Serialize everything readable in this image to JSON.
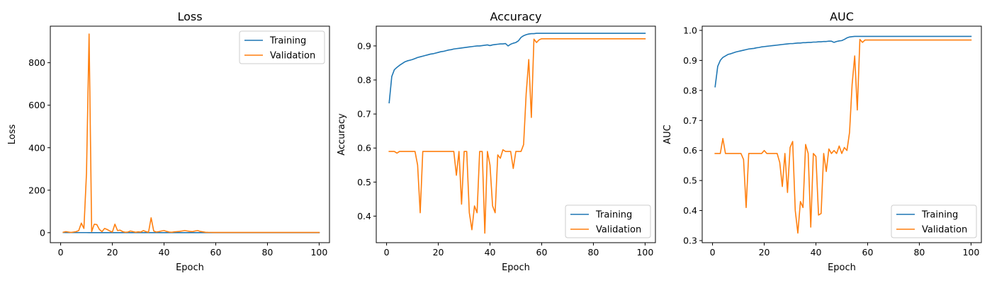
{
  "chart_data": [
    {
      "type": "line",
      "title": "Loss",
      "xlabel": "Epoch",
      "ylabel": "Loss",
      "xlim": [
        -4,
        104
      ],
      "ylim": [
        -47,
        972
      ],
      "xticks": [
        0,
        20,
        40,
        60,
        80,
        100
      ],
      "yticks": [
        0,
        200,
        400,
        600,
        800
      ],
      "legend_position": "upper right",
      "x_start": 1,
      "x_step": 1,
      "series": [
        {
          "name": "Training",
          "color": "#1f77b4",
          "values": [
            1.1,
            0.7,
            0.6,
            0.55,
            0.5,
            0.48,
            0.46,
            0.44,
            0.42,
            0.41,
            0.4,
            0.39,
            0.38,
            0.37,
            0.36,
            0.35,
            0.34,
            0.33,
            0.32,
            0.31,
            0.3,
            0.3,
            0.29,
            0.29,
            0.28,
            0.28,
            0.27,
            0.27,
            0.26,
            0.26,
            0.26,
            0.25,
            0.25,
            0.25,
            0.24,
            0.24,
            0.24,
            0.24,
            0.23,
            0.23,
            0.23,
            0.23,
            0.22,
            0.22,
            0.22,
            0.22,
            0.22,
            0.21,
            0.21,
            0.21,
            0.21,
            0.2,
            0.2,
            0.2,
            0.19,
            0.19,
            0.18,
            0.18,
            0.18,
            0.18,
            0.17,
            0.17,
            0.17,
            0.17,
            0.17,
            0.17,
            0.17,
            0.17,
            0.17,
            0.17,
            0.17,
            0.17,
            0.17,
            0.17,
            0.17,
            0.17,
            0.17,
            0.17,
            0.17,
            0.17,
            0.17,
            0.17,
            0.17,
            0.17,
            0.17,
            0.17,
            0.17,
            0.17,
            0.17,
            0.17,
            0.17,
            0.17,
            0.17,
            0.17,
            0.17,
            0.17,
            0.17,
            0.17,
            0.17,
            0.17
          ]
        },
        {
          "name": "Validation",
          "color": "#ff7f0e",
          "values": [
            2,
            5,
            3,
            1,
            3,
            5,
            10,
            45,
            20,
            280,
            935,
            5,
            40,
            38,
            15,
            5,
            20,
            15,
            8,
            3,
            40,
            10,
            12,
            5,
            2,
            3,
            8,
            5,
            2,
            4,
            3,
            10,
            5,
            2,
            70,
            8,
            3,
            5,
            8,
            10,
            6,
            3,
            2,
            4,
            5,
            6,
            8,
            10,
            8,
            6,
            5,
            8,
            10,
            6,
            4,
            2,
            1.5,
            1.3,
            1.2,
            1.1,
            1,
            1,
            1,
            1,
            1,
            1,
            1,
            1,
            1,
            1,
            1,
            1,
            1,
            1,
            1,
            1,
            1,
            1,
            1,
            1,
            1,
            1,
            1,
            1,
            1,
            1,
            1,
            1,
            1,
            1,
            1,
            1,
            1,
            1,
            1,
            1,
            1,
            1,
            1,
            1
          ]
        }
      ]
    },
    {
      "type": "line",
      "title": "Accuracy",
      "xlabel": "Epoch",
      "ylabel": "Accuracy",
      "xlim": [
        -4,
        104
      ],
      "ylim": [
        0.322,
        0.958
      ],
      "xticks": [
        0,
        20,
        40,
        60,
        80,
        100
      ],
      "yticks": [
        0.4,
        0.5,
        0.6,
        0.7,
        0.8,
        0.9
      ],
      "legend_position": "lower right",
      "x_start": 1,
      "x_step": 1,
      "series": [
        {
          "name": "Training",
          "color": "#1f77b4",
          "values": [
            0.733,
            0.81,
            0.83,
            0.837,
            0.843,
            0.848,
            0.853,
            0.856,
            0.858,
            0.86,
            0.863,
            0.866,
            0.868,
            0.87,
            0.872,
            0.874,
            0.876,
            0.877,
            0.879,
            0.881,
            0.883,
            0.884,
            0.886,
            0.888,
            0.889,
            0.891,
            0.892,
            0.893,
            0.894,
            0.895,
            0.896,
            0.897,
            0.898,
            0.899,
            0.9,
            0.9,
            0.901,
            0.902,
            0.903,
            0.901,
            0.903,
            0.904,
            0.905,
            0.906,
            0.906,
            0.907,
            0.9,
            0.905,
            0.908,
            0.91,
            0.915,
            0.925,
            0.93,
            0.933,
            0.935,
            0.936,
            0.936,
            0.937,
            0.937,
            0.937,
            0.937,
            0.937,
            0.937,
            0.937,
            0.937,
            0.937,
            0.937,
            0.937,
            0.937,
            0.937,
            0.937,
            0.937,
            0.937,
            0.937,
            0.937,
            0.937,
            0.937,
            0.937,
            0.937,
            0.937,
            0.937,
            0.937,
            0.937,
            0.937,
            0.937,
            0.937,
            0.937,
            0.937,
            0.937,
            0.937,
            0.937,
            0.937,
            0.937,
            0.937,
            0.937,
            0.937,
            0.937,
            0.937,
            0.937,
            0.937
          ]
        },
        {
          "name": "Validation",
          "color": "#ff7f0e",
          "values": [
            0.59,
            0.59,
            0.59,
            0.585,
            0.59,
            0.59,
            0.59,
            0.59,
            0.59,
            0.59,
            0.59,
            0.55,
            0.41,
            0.59,
            0.59,
            0.59,
            0.59,
            0.59,
            0.59,
            0.59,
            0.59,
            0.59,
            0.59,
            0.59,
            0.59,
            0.59,
            0.52,
            0.59,
            0.435,
            0.59,
            0.59,
            0.41,
            0.36,
            0.43,
            0.41,
            0.59,
            0.59,
            0.35,
            0.59,
            0.55,
            0.43,
            0.41,
            0.58,
            0.57,
            0.595,
            0.59,
            0.59,
            0.59,
            0.54,
            0.59,
            0.59,
            0.59,
            0.61,
            0.76,
            0.86,
            0.69,
            0.92,
            0.91,
            0.918,
            0.921,
            0.921,
            0.921,
            0.921,
            0.921,
            0.921,
            0.921,
            0.921,
            0.921,
            0.921,
            0.921,
            0.921,
            0.921,
            0.921,
            0.921,
            0.921,
            0.921,
            0.921,
            0.921,
            0.921,
            0.921,
            0.921,
            0.921,
            0.921,
            0.921,
            0.921,
            0.921,
            0.921,
            0.921,
            0.921,
            0.921,
            0.921,
            0.921,
            0.921,
            0.921,
            0.921,
            0.921,
            0.921,
            0.921,
            0.921,
            0.921
          ]
        }
      ]
    },
    {
      "type": "line",
      "title": "AUC",
      "xlabel": "Epoch",
      "ylabel": "AUC",
      "xlim": [
        -4,
        104
      ],
      "ylim": [
        0.293,
        1.014
      ],
      "xticks": [
        0,
        20,
        40,
        60,
        80,
        100
      ],
      "yticks": [
        0.3,
        0.4,
        0.5,
        0.6,
        0.7,
        0.8,
        0.9,
        1.0
      ],
      "legend_position": "lower right",
      "x_start": 1,
      "x_step": 1,
      "series": [
        {
          "name": "Training",
          "color": "#1f77b4",
          "values": [
            0.812,
            0.88,
            0.9,
            0.91,
            0.915,
            0.92,
            0.922,
            0.925,
            0.928,
            0.93,
            0.932,
            0.934,
            0.936,
            0.938,
            0.939,
            0.94,
            0.942,
            0.943,
            0.945,
            0.946,
            0.947,
            0.948,
            0.949,
            0.95,
            0.951,
            0.952,
            0.953,
            0.954,
            0.955,
            0.956,
            0.956,
            0.957,
            0.958,
            0.958,
            0.959,
            0.959,
            0.96,
            0.96,
            0.961,
            0.961,
            0.962,
            0.962,
            0.963,
            0.963,
            0.964,
            0.964,
            0.96,
            0.963,
            0.965,
            0.966,
            0.97,
            0.975,
            0.978,
            0.979,
            0.98,
            0.98,
            0.98,
            0.98,
            0.98,
            0.98,
            0.98,
            0.98,
            0.98,
            0.98,
            0.98,
            0.98,
            0.98,
            0.98,
            0.98,
            0.98,
            0.98,
            0.98,
            0.98,
            0.98,
            0.98,
            0.98,
            0.98,
            0.98,
            0.98,
            0.98,
            0.98,
            0.98,
            0.98,
            0.98,
            0.98,
            0.98,
            0.98,
            0.98,
            0.98,
            0.98,
            0.98,
            0.98,
            0.98,
            0.98,
            0.98,
            0.98,
            0.98,
            0.98,
            0.98,
            0.98
          ]
        },
        {
          "name": "Validation",
          "color": "#ff7f0e",
          "values": [
            0.59,
            0.59,
            0.59,
            0.64,
            0.59,
            0.59,
            0.59,
            0.59,
            0.59,
            0.59,
            0.59,
            0.57,
            0.41,
            0.59,
            0.59,
            0.59,
            0.59,
            0.59,
            0.59,
            0.6,
            0.59,
            0.59,
            0.59,
            0.59,
            0.59,
            0.56,
            0.48,
            0.59,
            0.46,
            0.61,
            0.63,
            0.4,
            0.325,
            0.43,
            0.41,
            0.62,
            0.59,
            0.345,
            0.59,
            0.58,
            0.385,
            0.39,
            0.59,
            0.53,
            0.605,
            0.59,
            0.6,
            0.59,
            0.615,
            0.59,
            0.61,
            0.6,
            0.66,
            0.82,
            0.915,
            0.735,
            0.97,
            0.96,
            0.968,
            0.968,
            0.968,
            0.968,
            0.968,
            0.968,
            0.968,
            0.968,
            0.968,
            0.968,
            0.968,
            0.968,
            0.968,
            0.968,
            0.968,
            0.968,
            0.968,
            0.968,
            0.968,
            0.968,
            0.968,
            0.968,
            0.968,
            0.968,
            0.968,
            0.968,
            0.968,
            0.968,
            0.968,
            0.968,
            0.968,
            0.968,
            0.968,
            0.968,
            0.968,
            0.968,
            0.968,
            0.968,
            0.968,
            0.968,
            0.968,
            0.968
          ]
        }
      ]
    }
  ]
}
